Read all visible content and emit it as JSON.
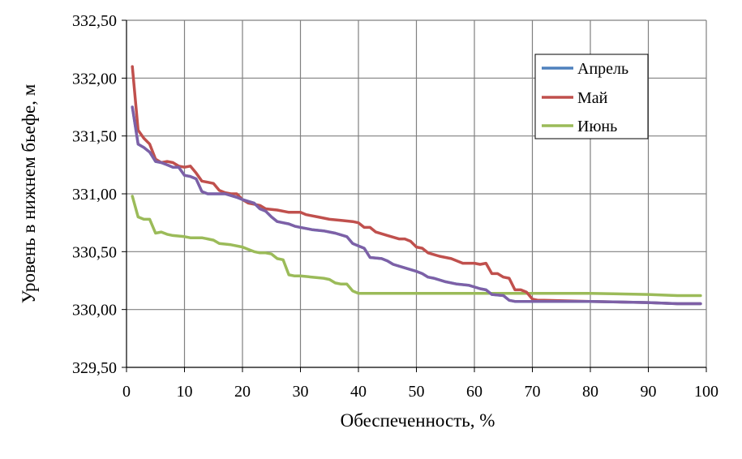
{
  "chart_data": {
    "type": "line",
    "title": "",
    "xlabel": "Обеспеченность, %",
    "ylabel": "Уровень в нижнем бьефе, м",
    "xlim": [
      0,
      100
    ],
    "ylim": [
      329.5,
      332.5
    ],
    "x_ticks": [
      0,
      10,
      20,
      30,
      40,
      50,
      60,
      70,
      80,
      90,
      100
    ],
    "x_tick_labels": [
      "0",
      "10",
      "20",
      "30",
      "40",
      "50",
      "60",
      "70",
      "80",
      "90",
      "100"
    ],
    "y_ticks": [
      329.5,
      330.0,
      330.5,
      331.0,
      331.5,
      332.0,
      332.5
    ],
    "y_tick_labels": [
      "329,50",
      "330,00",
      "330,50",
      "331,00",
      "331,50",
      "332,00",
      "332,50"
    ],
    "grid": true,
    "legend_position": "top-right",
    "series": [
      {
        "name": "Апрель",
        "color": "#4F81BD",
        "points": [
          [
            1,
            331.75
          ],
          [
            2,
            331.43
          ],
          [
            3,
            331.4
          ],
          [
            4,
            331.36
          ],
          [
            5,
            331.28
          ],
          [
            6,
            331.27
          ],
          [
            7,
            331.25
          ],
          [
            8,
            331.23
          ],
          [
            9,
            331.23
          ],
          [
            10,
            331.16
          ],
          [
            11,
            331.15
          ],
          [
            12,
            331.13
          ],
          [
            13,
            331.02
          ],
          [
            14,
            331.0
          ],
          [
            15,
            331.0
          ],
          [
            17,
            331.0
          ],
          [
            19,
            330.97
          ],
          [
            20,
            330.95
          ],
          [
            22,
            330.92
          ],
          [
            23,
            330.87
          ],
          [
            24,
            330.85
          ],
          [
            25,
            330.8
          ],
          [
            26,
            330.76
          ],
          [
            27,
            330.75
          ],
          [
            28,
            330.74
          ],
          [
            29,
            330.72
          ],
          [
            30,
            330.71
          ],
          [
            32,
            330.69
          ],
          [
            34,
            330.68
          ],
          [
            36,
            330.66
          ],
          [
            38,
            330.63
          ],
          [
            39,
            330.57
          ],
          [
            40,
            330.55
          ],
          [
            41,
            330.53
          ],
          [
            42,
            330.45
          ],
          [
            44,
            330.44
          ],
          [
            45,
            330.42
          ],
          [
            46,
            330.39
          ],
          [
            48,
            330.36
          ],
          [
            50,
            330.33
          ],
          [
            51,
            330.31
          ],
          [
            52,
            330.28
          ],
          [
            53,
            330.27
          ],
          [
            55,
            330.24
          ],
          [
            57,
            330.22
          ],
          [
            59,
            330.21
          ],
          [
            61,
            330.18
          ],
          [
            62,
            330.17
          ],
          [
            63,
            330.13
          ],
          [
            65,
            330.12
          ],
          [
            66,
            330.08
          ],
          [
            67,
            330.07
          ],
          [
            70,
            330.07
          ],
          [
            80,
            330.07
          ],
          [
            90,
            330.06
          ],
          [
            95,
            330.05
          ],
          [
            99,
            330.05
          ]
        ]
      },
      {
        "name": "Май",
        "color": "#C0504D",
        "points": [
          [
            1,
            332.1
          ],
          [
            2,
            331.55
          ],
          [
            3,
            331.48
          ],
          [
            4,
            331.43
          ],
          [
            5,
            331.3
          ],
          [
            6,
            331.27
          ],
          [
            7,
            331.28
          ],
          [
            8,
            331.27
          ],
          [
            9,
            331.24
          ],
          [
            10,
            331.23
          ],
          [
            11,
            331.24
          ],
          [
            12,
            331.18
          ],
          [
            13,
            331.11
          ],
          [
            14,
            331.1
          ],
          [
            15,
            331.09
          ],
          [
            16,
            331.03
          ],
          [
            17,
            331.01
          ],
          [
            18,
            331.0
          ],
          [
            19,
            331.0
          ],
          [
            20,
            330.95
          ],
          [
            21,
            330.92
          ],
          [
            22,
            330.91
          ],
          [
            23,
            330.9
          ],
          [
            24,
            330.87
          ],
          [
            26,
            330.86
          ],
          [
            28,
            330.84
          ],
          [
            30,
            330.84
          ],
          [
            31,
            330.82
          ],
          [
            33,
            330.8
          ],
          [
            35,
            330.78
          ],
          [
            37,
            330.77
          ],
          [
            39,
            330.76
          ],
          [
            40,
            330.75
          ],
          [
            41,
            330.71
          ],
          [
            42,
            330.71
          ],
          [
            43,
            330.67
          ],
          [
            45,
            330.64
          ],
          [
            47,
            330.61
          ],
          [
            48,
            330.61
          ],
          [
            49,
            330.59
          ],
          [
            50,
            330.54
          ],
          [
            51,
            330.53
          ],
          [
            52,
            330.49
          ],
          [
            54,
            330.46
          ],
          [
            56,
            330.44
          ],
          [
            58,
            330.4
          ],
          [
            60,
            330.4
          ],
          [
            61,
            330.39
          ],
          [
            62,
            330.4
          ],
          [
            63,
            330.31
          ],
          [
            64,
            330.31
          ],
          [
            65,
            330.28
          ],
          [
            66,
            330.27
          ],
          [
            67,
            330.17
          ],
          [
            68,
            330.17
          ],
          [
            69,
            330.15
          ],
          [
            70,
            330.09
          ],
          [
            71,
            330.08
          ],
          [
            72,
            330.08
          ],
          [
            80,
            330.07
          ],
          [
            90,
            330.06
          ],
          [
            95,
            330.05
          ],
          [
            99,
            330.05
          ]
        ]
      },
      {
        "name": "Июнь",
        "color": "#9BBB59",
        "points": [
          [
            1,
            330.98
          ],
          [
            2,
            330.8
          ],
          [
            3,
            330.78
          ],
          [
            4,
            330.78
          ],
          [
            5,
            330.66
          ],
          [
            6,
            330.67
          ],
          [
            7,
            330.65
          ],
          [
            8,
            330.64
          ],
          [
            10,
            330.63
          ],
          [
            11,
            330.62
          ],
          [
            13,
            330.62
          ],
          [
            14,
            330.61
          ],
          [
            15,
            330.6
          ],
          [
            16,
            330.57
          ],
          [
            18,
            330.56
          ],
          [
            20,
            330.54
          ],
          [
            21,
            330.52
          ],
          [
            22,
            330.5
          ],
          [
            23,
            330.49
          ],
          [
            24,
            330.49
          ],
          [
            25,
            330.48
          ],
          [
            26,
            330.44
          ],
          [
            27,
            330.43
          ],
          [
            28,
            330.3
          ],
          [
            29,
            330.29
          ],
          [
            30,
            330.29
          ],
          [
            32,
            330.28
          ],
          [
            34,
            330.27
          ],
          [
            35,
            330.26
          ],
          [
            36,
            330.23
          ],
          [
            37,
            330.22
          ],
          [
            38,
            330.22
          ],
          [
            39,
            330.16
          ],
          [
            40,
            330.14
          ],
          [
            45,
            330.14
          ],
          [
            50,
            330.14
          ],
          [
            60,
            330.14
          ],
          [
            70,
            330.14
          ],
          [
            80,
            330.14
          ],
          [
            90,
            330.13
          ],
          [
            95,
            330.12
          ],
          [
            99,
            330.12
          ]
        ]
      }
    ],
    "overlay_color": "#7F5FA6"
  }
}
